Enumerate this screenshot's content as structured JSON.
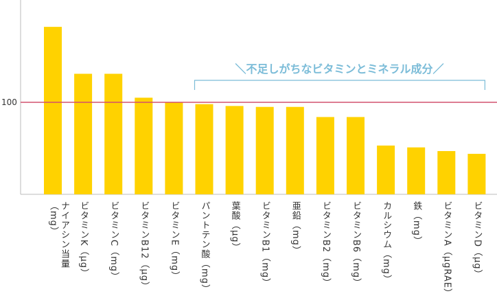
{
  "chart_data": {
    "type": "bar",
    "categories": [
      "ナイアシン当量（mg）",
      "ビタミンK（µg）",
      "ビタミンC（mg）",
      "ビタミンB12（µg）",
      "ビタミンE（mg）",
      "パントテン酸（mg）",
      "葉酸（µg）",
      "ビタミンB1（mg）",
      "亜鉛（mg）",
      "ビタミンB2（mg）",
      "ビタミンB6（mg）",
      "カルシウム（mg）",
      "鉄（mg）",
      "ビタミンA（µgRAE）",
      "ビタミンD（µg）"
    ],
    "values": [
      182,
      131,
      131,
      105,
      100,
      98,
      96,
      95,
      95,
      84,
      84,
      53,
      51,
      47,
      44
    ],
    "yticks": [
      "100"
    ],
    "reference_line": 100,
    "ylim": [
      0,
      210
    ],
    "annotation": "＼不足しがちなビタミンとミネラル成分／",
    "annotation_range": [
      "パントテン酸（mg）",
      "ビタミンD（µg）"
    ],
    "grid": false,
    "colors": {
      "bar": "#ffd200",
      "reference": "#d2506e",
      "annotation": "#7bbcd8",
      "axis": "#bbbbbb"
    }
  }
}
